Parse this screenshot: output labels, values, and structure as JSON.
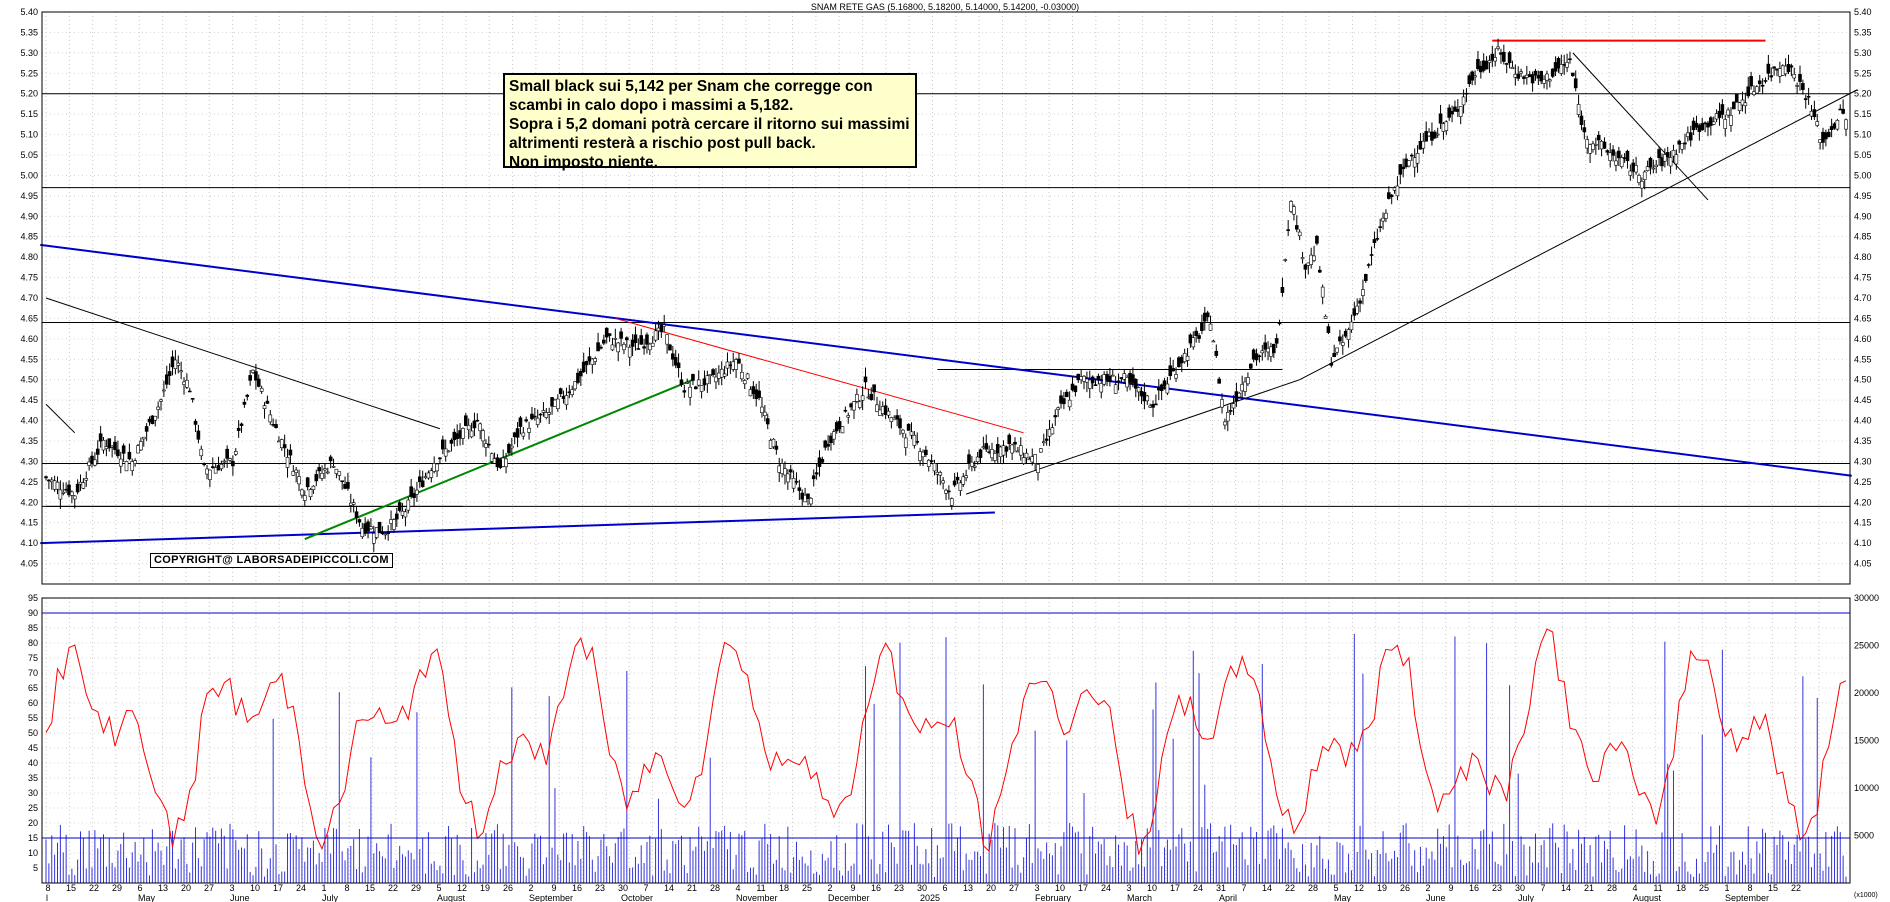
{
  "chart_data": [
    {
      "type": "candlestick",
      "title": "SNAM RETE GAS (5.16800, 5.18200, 5.14000, 5.14200, -0.03000)",
      "ylim": [
        4.0,
        5.4
      ],
      "y_ticks": [
        "4.05",
        "4.10",
        "4.15",
        "4.20",
        "4.25",
        "4.30",
        "4.35",
        "4.40",
        "4.45",
        "4.50",
        "4.55",
        "4.60",
        "4.65",
        "4.70",
        "4.75",
        "4.80",
        "4.85",
        "4.90",
        "4.95",
        "5.00",
        "5.05",
        "5.10",
        "5.15",
        "5.20",
        "5.25",
        "5.30",
        "5.35",
        "5.40"
      ],
      "annotation_lines": [
        "Small black sui 5,142 per Snam che corregge con",
        "scambi in calo dopo i massimi a 5,182.",
        "Sopra i 5,2 domani potrà cercare il ritorno sui massimi",
        "altrimenti resterà a rischio post pull back.",
        "Non imposto niente."
      ],
      "copyright": "COPYRIGHT@ LABORSADEIPICCOLI.COM",
      "horizontal_levels": [
        4.19,
        4.295,
        4.64,
        4.97,
        5.2
      ],
      "resistance_level": 5.33,
      "last_close": 5.142,
      "recent_high": 5.182,
      "close_path": [
        [
          0,
          4.26
        ],
        [
          10,
          4.22
        ],
        [
          20,
          4.35
        ],
        [
          30,
          4.3
        ],
        [
          40,
          4.45
        ],
        [
          45,
          4.55
        ],
        [
          50,
          4.48
        ],
        [
          55,
          4.28
        ],
        [
          65,
          4.3
        ],
        [
          72,
          4.52
        ],
        [
          80,
          4.38
        ],
        [
          90,
          4.23
        ],
        [
          100,
          4.3
        ],
        [
          110,
          4.14
        ],
        [
          118,
          4.13
        ],
        [
          125,
          4.18
        ],
        [
          135,
          4.3
        ],
        [
          150,
          4.4
        ],
        [
          158,
          4.28
        ],
        [
          165,
          4.38
        ],
        [
          175,
          4.42
        ],
        [
          185,
          4.5
        ],
        [
          195,
          4.6
        ],
        [
          205,
          4.58
        ],
        [
          215,
          4.62
        ],
        [
          222,
          4.48
        ],
        [
          232,
          4.5
        ],
        [
          240,
          4.55
        ],
        [
          248,
          4.45
        ],
        [
          255,
          4.3
        ],
        [
          265,
          4.2
        ],
        [
          272,
          4.35
        ],
        [
          285,
          4.48
        ],
        [
          295,
          4.4
        ],
        [
          305,
          4.33
        ],
        [
          315,
          4.22
        ],
        [
          325,
          4.32
        ],
        [
          335,
          4.34
        ],
        [
          345,
          4.3
        ],
        [
          352,
          4.42
        ],
        [
          360,
          4.5
        ],
        [
          375,
          4.5
        ],
        [
          385,
          4.44
        ],
        [
          395,
          4.55
        ],
        [
          405,
          4.65
        ],
        [
          410,
          4.4
        ],
        [
          420,
          4.55
        ],
        [
          428,
          4.58
        ],
        [
          433,
          4.95
        ],
        [
          438,
          4.78
        ],
        [
          442,
          4.82
        ],
        [
          447,
          4.55
        ],
        [
          452,
          4.6
        ],
        [
          458,
          4.72
        ],
        [
          463,
          4.85
        ],
        [
          468,
          4.95
        ],
        [
          475,
          5.05
        ],
        [
          482,
          5.1
        ],
        [
          490,
          5.15
        ],
        [
          497,
          5.25
        ],
        [
          505,
          5.3
        ],
        [
          512,
          5.25
        ],
        [
          520,
          5.23
        ],
        [
          530,
          5.28
        ],
        [
          535,
          5.1
        ],
        [
          545,
          5.05
        ],
        [
          555,
          5.0
        ],
        [
          565,
          5.05
        ],
        [
          575,
          5.12
        ],
        [
          585,
          5.15
        ],
        [
          595,
          5.22
        ],
        [
          605,
          5.28
        ],
        [
          612,
          5.2
        ],
        [
          618,
          5.08
        ],
        [
          624,
          5.15
        ],
        [
          626,
          5.142
        ]
      ]
    },
    {
      "type": "line+bar",
      "title": "",
      "oscillator_ylim": [
        0,
        95
      ],
      "oscillator_ticks": [
        "5",
        "10",
        "15",
        "20",
        "25",
        "30",
        "35",
        "40",
        "45",
        "50",
        "55",
        "60",
        "65",
        "70",
        "75",
        "80",
        "85",
        "90",
        "95"
      ],
      "volume_ylim": [
        0,
        30000
      ],
      "volume_ticks": [
        "5000",
        "10000",
        "15000",
        "20000",
        "25000",
        "30000"
      ],
      "volume_unit": "(x1000)",
      "oscillator_levels": [
        15,
        90
      ],
      "x_day_labels": [
        "8",
        "15",
        "22",
        "29",
        "6",
        "13",
        "20",
        "27",
        "3",
        "10",
        "17",
        "24",
        "1",
        "8",
        "15",
        "22",
        "29",
        "5",
        "12",
        "19",
        "26",
        "2",
        "9",
        "16",
        "23",
        "30",
        "7",
        "14",
        "21",
        "28",
        "4",
        "11",
        "18",
        "25",
        "2",
        "9",
        "16",
        "23",
        "30",
        "6",
        "13",
        "20",
        "27",
        "3",
        "10",
        "17",
        "24",
        "3",
        "10",
        "17",
        "24",
        "31",
        "7",
        "14",
        "22",
        "28",
        "5",
        "12",
        "19",
        "26",
        "2",
        "9",
        "16",
        "23",
        "30",
        "7",
        "14",
        "21",
        "28",
        "4",
        "11",
        "18",
        "25",
        "1",
        "8",
        "15",
        "22"
      ],
      "x_month_labels": [
        "l",
        "May",
        "June",
        "July",
        "August",
        "September",
        "October",
        "November",
        "December",
        "2025",
        "February",
        "March",
        "April",
        "May",
        "June",
        "July",
        "August",
        "September"
      ]
    }
  ]
}
